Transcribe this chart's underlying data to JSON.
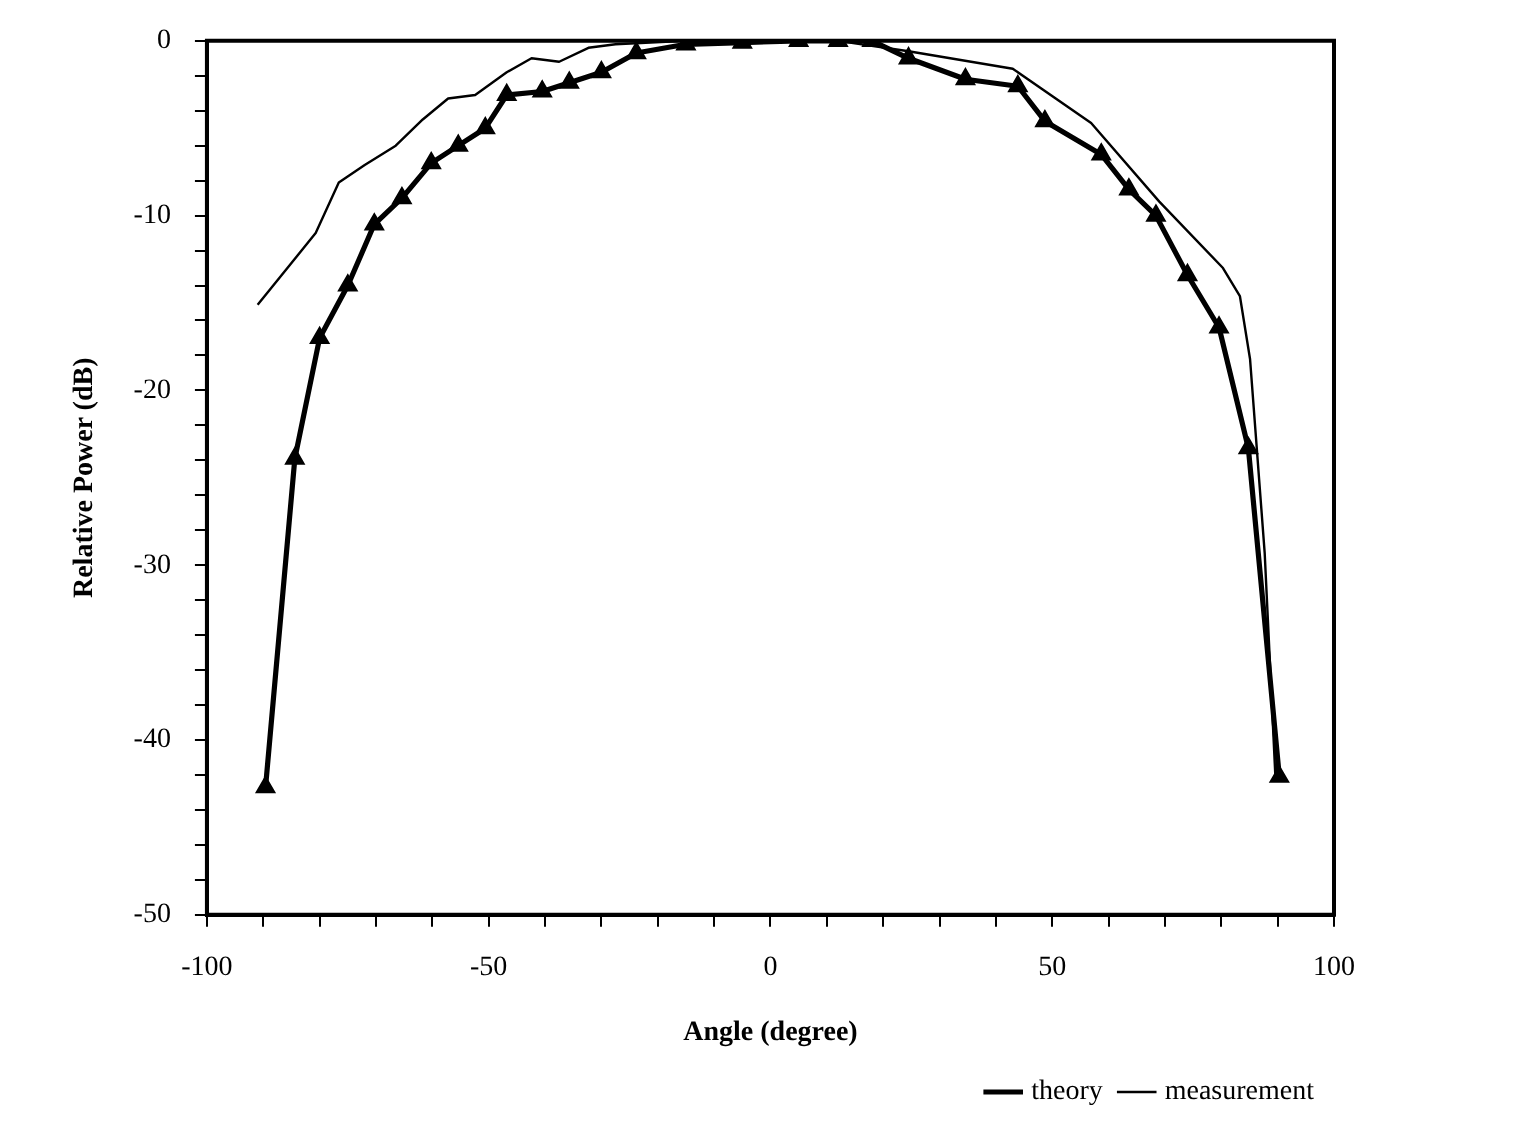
{
  "chart_data": {
    "type": "line",
    "xlabel": "Angle (degree)",
    "ylabel": "Relative Power (dB)",
    "xlim": [
      -100,
      100
    ],
    "ylim": [
      -50,
      0
    ],
    "xticks": [
      -100,
      {
        "value": -90,
        "label": null
      },
      {
        "value": -80,
        "label": null
      },
      {
        "value": -70,
        "label": null
      },
      {
        "value": -60,
        "label": null
      },
      -50,
      {
        "value": -40,
        "label": null
      },
      {
        "value": -30,
        "label": null
      },
      {
        "value": -20,
        "label": null
      },
      {
        "value": -10,
        "label": null
      },
      0,
      {
        "value": 10,
        "label": null
      },
      {
        "value": 20,
        "label": null
      },
      {
        "value": 30,
        "label": null
      },
      {
        "value": 40,
        "label": null
      },
      50,
      {
        "value": 60,
        "label": null
      },
      {
        "value": 70,
        "label": null
      },
      {
        "value": 80,
        "label": null
      },
      {
        "value": 90,
        "label": null
      },
      100
    ],
    "yticks": [
      -50,
      {
        "value": -48,
        "label": null
      },
      {
        "value": -46,
        "label": null
      },
      {
        "value": -44,
        "label": null
      },
      {
        "value": -42,
        "label": null
      },
      -40,
      {
        "value": -38,
        "label": null
      },
      {
        "value": -36,
        "label": null
      },
      {
        "value": -34,
        "label": null
      },
      {
        "value": -32,
        "label": null
      },
      -30,
      {
        "value": -28,
        "label": null
      },
      {
        "value": -26,
        "label": null
      },
      {
        "value": -24,
        "label": null
      },
      {
        "value": -22,
        "label": null
      },
      -20,
      {
        "value": -18,
        "label": null
      },
      {
        "value": -16,
        "label": null
      },
      {
        "value": -14,
        "label": null
      },
      {
        "value": -12,
        "label": null
      },
      -10,
      {
        "value": -8,
        "label": null
      },
      {
        "value": -6,
        "label": null
      },
      {
        "value": -4,
        "label": null
      },
      {
        "value": -2,
        "label": null
      },
      0
    ],
    "legend": "bottom right",
    "line_style": "solid",
    "series": [
      {
        "name": "theory",
        "color": "#000000",
        "marker": "triangle",
        "x": [
          -89.6,
          -84.4,
          -80,
          -75,
          -70.3,
          -65.4,
          -60.2,
          -55.4,
          -50.6,
          -46.8,
          -40.5,
          -35.7,
          -30,
          -23.8,
          -15,
          -5,
          5,
          12,
          18,
          24.5,
          34.6,
          43.9,
          48.7,
          58.7,
          63.6,
          68.4,
          74,
          79.6,
          84.8,
          90.3
        ],
        "values": [
          -42.7,
          -23.9,
          -17,
          -14,
          -10.5,
          -9,
          -7,
          -6,
          -5,
          -3.1,
          -2.9,
          -2.4,
          -1.8,
          -0.7,
          -0.2,
          -0.1,
          0,
          0,
          0,
          -1,
          -2.2,
          -2.6,
          -4.6,
          -6.5,
          -8.5,
          -10,
          -13.4,
          -16.4,
          -23.3,
          -42.1
        ]
      },
      {
        "name": "measurement",
        "color": "#000000",
        "marker": "none",
        "x": [
          -91,
          -80.7,
          -76.6,
          -72,
          -66.5,
          -61.7,
          -57.2,
          -52.4,
          -46.8,
          -42.4,
          -37.5,
          -32.3,
          -27.5,
          -15,
          0,
          12,
          24.5,
          43,
          56.9,
          69,
          80.3,
          83.3,
          85.1,
          87.7,
          89.6
        ],
        "values": [
          -15.1,
          -11,
          -8.1,
          -7.1,
          -6,
          -4.5,
          -3.3,
          -3.1,
          -1.8,
          -1,
          -1.2,
          -0.4,
          -0.2,
          0,
          0,
          0,
          -0.6,
          -1.6,
          -4.7,
          -9.2,
          -13,
          -14.6,
          -18.2,
          -29.3,
          -42.1
        ]
      }
    ]
  }
}
